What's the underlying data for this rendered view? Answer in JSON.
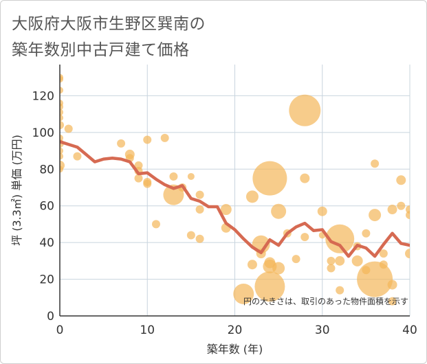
{
  "title_lines": [
    "大阪府大阪市生野区巽南の",
    "築年数別中古戸建て価格"
  ],
  "chart_data": {
    "type": "scatter",
    "xlabel": "築年数 (年)",
    "ylabel": "坪 (3.3㎡) 単価 (万円)",
    "xlim": [
      0,
      40
    ],
    "ylim": [
      0,
      137
    ],
    "xticks": [
      0,
      10,
      20,
      30,
      40
    ],
    "yticks": [
      0,
      20,
      40,
      60,
      80,
      100,
      120
    ],
    "grid": true,
    "annotation": "円の大きさは、取引のあった物件面積を示す",
    "colors": {
      "bubble": "#f4b65a",
      "line": "#d66a52",
      "grid": "#c8d4de"
    },
    "bubbles": [
      {
        "x": 0,
        "y": 130,
        "r": 5
      },
      {
        "x": 0,
        "y": 129,
        "r": 5
      },
      {
        "x": 0,
        "y": 123,
        "r": 5
      },
      {
        "x": 0,
        "y": 116,
        "r": 5
      },
      {
        "x": 0,
        "y": 114,
        "r": 5
      },
      {
        "x": 0,
        "y": 111,
        "r": 5
      },
      {
        "x": 0,
        "y": 108,
        "r": 5
      },
      {
        "x": 0,
        "y": 104,
        "r": 6
      },
      {
        "x": 0,
        "y": 97,
        "r": 5
      },
      {
        "x": 0,
        "y": 94,
        "r": 6
      },
      {
        "x": 0,
        "y": 90,
        "r": 5
      },
      {
        "x": 0,
        "y": 87,
        "r": 5
      },
      {
        "x": 0,
        "y": 82,
        "r": 7
      },
      {
        "x": 0,
        "y": 80,
        "r": 5
      },
      {
        "x": 1,
        "y": 102,
        "r": 6
      },
      {
        "x": 2,
        "y": 87,
        "r": 6
      },
      {
        "x": 7,
        "y": 94,
        "r": 6
      },
      {
        "x": 8,
        "y": 88,
        "r": 7
      },
      {
        "x": 8,
        "y": 86,
        "r": 6
      },
      {
        "x": 9,
        "y": 82,
        "r": 6
      },
      {
        "x": 9,
        "y": 79,
        "r": 6
      },
      {
        "x": 9,
        "y": 75,
        "r": 6
      },
      {
        "x": 10,
        "y": 96,
        "r": 6
      },
      {
        "x": 10,
        "y": 73,
        "r": 6
      },
      {
        "x": 10,
        "y": 72,
        "r": 6
      },
      {
        "x": 11,
        "y": 50,
        "r": 6
      },
      {
        "x": 12,
        "y": 97,
        "r": 6
      },
      {
        "x": 13,
        "y": 76,
        "r": 6
      },
      {
        "x": 13,
        "y": 66,
        "r": 15
      },
      {
        "x": 14,
        "y": 70,
        "r": 6
      },
      {
        "x": 15,
        "y": 76,
        "r": 5
      },
      {
        "x": 15,
        "y": 44,
        "r": 6
      },
      {
        "x": 16,
        "y": 66,
        "r": 6
      },
      {
        "x": 16,
        "y": 58,
        "r": 6
      },
      {
        "x": 16,
        "y": 42,
        "r": 6
      },
      {
        "x": 19,
        "y": 58,
        "r": 8
      },
      {
        "x": 19,
        "y": 48,
        "r": 7
      },
      {
        "x": 21,
        "y": 12,
        "r": 15
      },
      {
        "x": 22,
        "y": 65,
        "r": 9
      },
      {
        "x": 22,
        "y": 28,
        "r": 7
      },
      {
        "x": 23,
        "y": 39,
        "r": 13
      },
      {
        "x": 23,
        "y": 34,
        "r": 7
      },
      {
        "x": 24,
        "y": 75,
        "r": 25
      },
      {
        "x": 24,
        "y": 29,
        "r": 8
      },
      {
        "x": 24,
        "y": 27,
        "r": 10
      },
      {
        "x": 24,
        "y": 16,
        "r": 22
      },
      {
        "x": 25,
        "y": 57,
        "r": 11
      },
      {
        "x": 25,
        "y": 26,
        "r": 9
      },
      {
        "x": 26,
        "y": 45,
        "r": 6
      },
      {
        "x": 27,
        "y": 31,
        "r": 6
      },
      {
        "x": 28,
        "y": 112,
        "r": 23
      },
      {
        "x": 28,
        "y": 75,
        "r": 7
      },
      {
        "x": 28,
        "y": 43,
        "r": 6
      },
      {
        "x": 30,
        "y": 57,
        "r": 7
      },
      {
        "x": 30,
        "y": 44,
        "r": 5
      },
      {
        "x": 31,
        "y": 30,
        "r": 6
      },
      {
        "x": 31,
        "y": 26,
        "r": 6
      },
      {
        "x": 32,
        "y": 42,
        "r": 21
      },
      {
        "x": 32,
        "y": 30,
        "r": 7
      },
      {
        "x": 32,
        "y": 14,
        "r": 6
      },
      {
        "x": 34,
        "y": 30,
        "r": 8
      },
      {
        "x": 34,
        "y": 38,
        "r": 6
      },
      {
        "x": 35,
        "y": 45,
        "r": 6
      },
      {
        "x": 35,
        "y": 25,
        "r": 6
      },
      {
        "x": 36,
        "y": 83,
        "r": 6
      },
      {
        "x": 36,
        "y": 55,
        "r": 9
      },
      {
        "x": 36,
        "y": 20,
        "r": 26
      },
      {
        "x": 37,
        "y": 34,
        "r": 6
      },
      {
        "x": 37,
        "y": 28,
        "r": 6
      },
      {
        "x": 38,
        "y": 58,
        "r": 7
      },
      {
        "x": 38,
        "y": 17,
        "r": 7
      },
      {
        "x": 38,
        "y": 8,
        "r": 6
      },
      {
        "x": 39,
        "y": 74,
        "r": 7
      },
      {
        "x": 39,
        "y": 60,
        "r": 6
      },
      {
        "x": 40,
        "y": 58,
        "r": 6
      },
      {
        "x": 40,
        "y": 55,
        "r": 6
      },
      {
        "x": 40,
        "y": 34,
        "r": 7
      }
    ],
    "line": {
      "x": [
        0,
        1,
        2,
        3,
        4,
        5,
        6,
        7,
        8,
        9,
        10,
        11,
        12,
        13,
        14,
        15,
        16,
        17,
        18,
        19,
        20,
        21,
        22,
        23,
        24,
        25,
        26,
        27,
        28,
        29,
        30,
        31,
        32,
        33,
        34,
        35,
        36,
        37,
        38,
        39,
        40
      ],
      "y": [
        95,
        93.5,
        92,
        88,
        84,
        85.5,
        86,
        85.5,
        84,
        77.5,
        78,
        74.5,
        71.5,
        69.5,
        71,
        64,
        62.5,
        59.5,
        59.5,
        50.5,
        47,
        42,
        37.5,
        34.5,
        41.5,
        38.5,
        45,
        48.5,
        50.5,
        46.5,
        47,
        40.5,
        38.5,
        32.5,
        38.5,
        37,
        32.5,
        39,
        45,
        39.5,
        38.5
      ]
    }
  }
}
